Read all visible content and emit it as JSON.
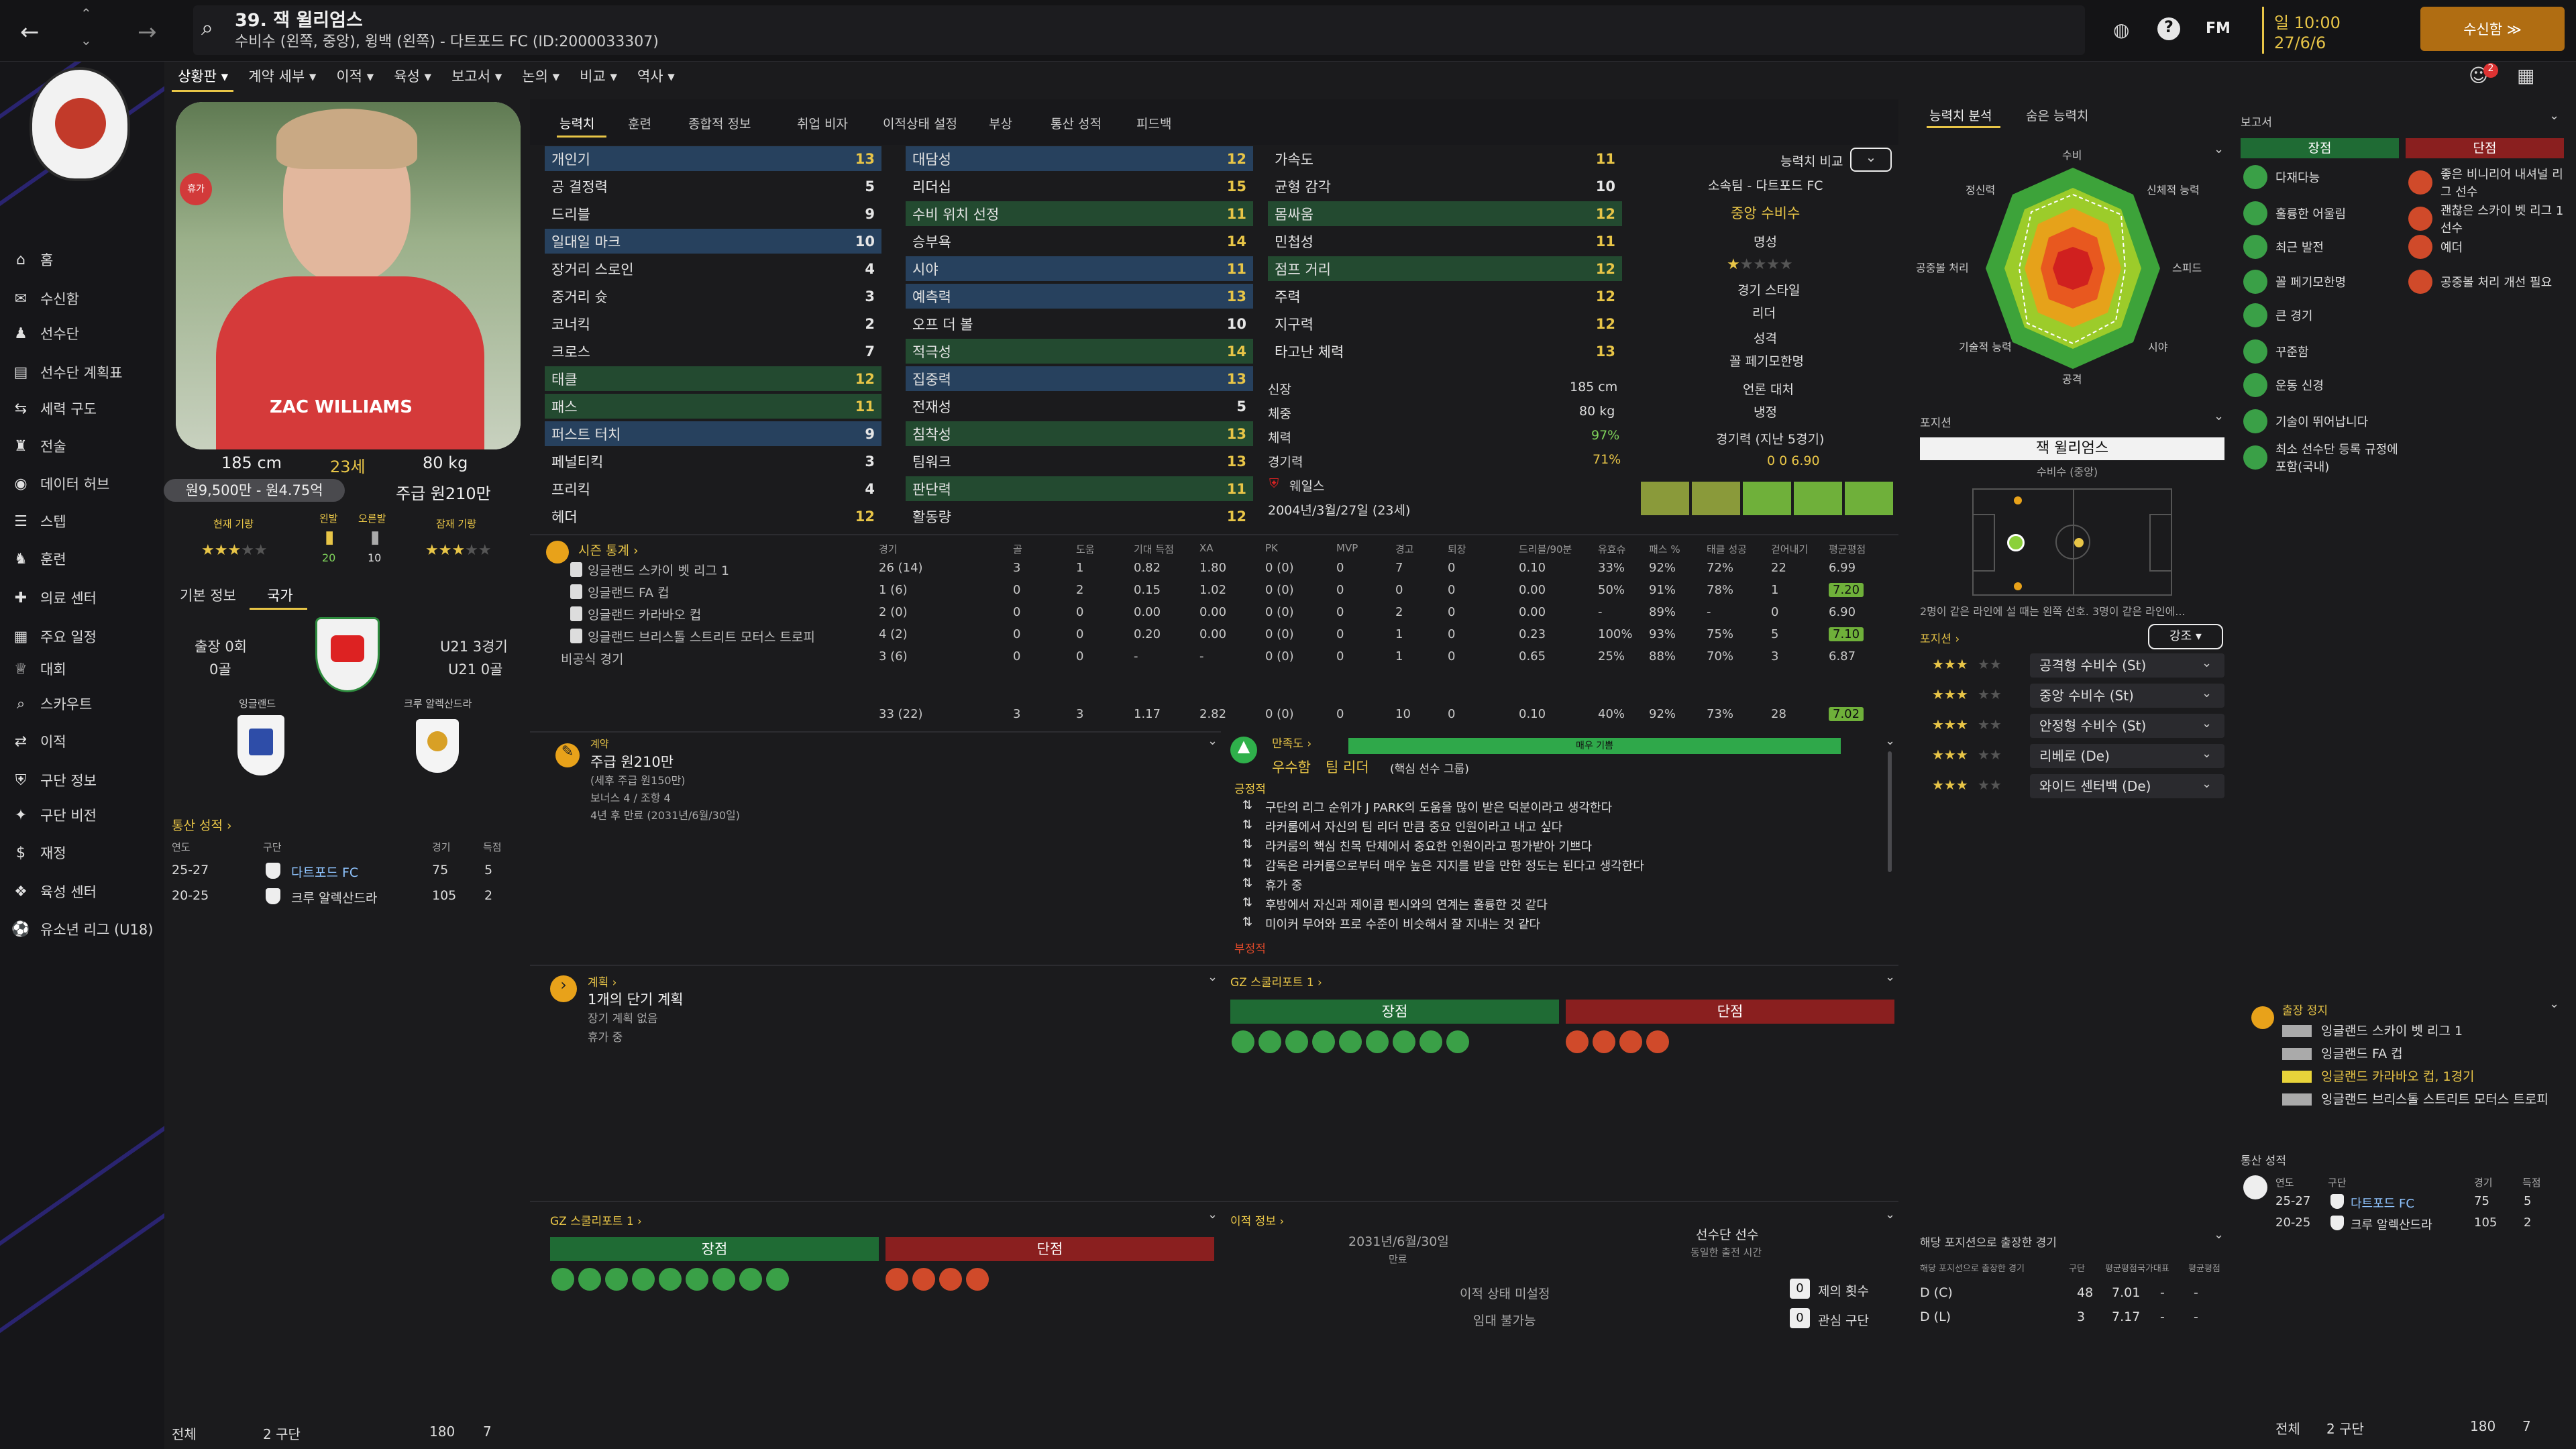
{
  "header": {
    "title": "39. 잭 윌리엄스",
    "subtitle": "수비수 (왼쪽, 중앙), 윙백 (왼쪽) - 다트포드 FC (ID:2000033307)",
    "date_line1": "일 10:00",
    "date_line2": "27/6/6",
    "continue_btn": "수신함 ≫",
    "fm_label": "FM",
    "notif_count": "2"
  },
  "subtabs": [
    "상황판 ▾",
    "계약 세부 ▾",
    "이적 ▾",
    "육성 ▾",
    "보고서 ▾",
    "논의 ▾",
    "비교 ▾",
    "역사 ▾"
  ],
  "nav": [
    "홈",
    "수신함",
    "선수단",
    "선수단 계획표",
    "세력 구도",
    "전술",
    "데이터 허브",
    "스텝",
    "훈련",
    "의료 센터",
    "주요 일정",
    "대회",
    "스카우트",
    "이적",
    "구단 정보",
    "구단 비전",
    "재정",
    "육성 센터",
    "유소년 리그 (U18)"
  ],
  "profile": {
    "height": "185 cm",
    "age": "23세",
    "weight": "80 kg",
    "value": "원9,500만 - 원4.75억",
    "wage": "주급 원210만",
    "cur_label": "현재 기량",
    "pot_label": "잠재 기량",
    "left_foot": "왼발",
    "right_foot": "오른발",
    "left_val": "20",
    "right_val": "10",
    "shirt_name": "ZAC WILLIAMS",
    "injury": "휴가"
  },
  "info_tabs": [
    "기본 정보",
    "국가"
  ],
  "nation": {
    "caps": "출장 0회",
    "goals": "0골",
    "u21": "U21 3경기",
    "u21_goals": "U21 0골",
    "eng": "잉글랜드",
    "crewe": "크루 알렉산드라"
  },
  "career_title": "통산 성적 ›",
  "career_hdr": [
    "연도",
    "구단",
    "경기",
    "득점"
  ],
  "career": [
    {
      "y": "25-27",
      "c": "다트포드 FC",
      "a": "75",
      "g": "5"
    },
    {
      "y": "20-25",
      "c": "크루 알렉산드라",
      "a": "105",
      "g": "2"
    }
  ],
  "career_total": {
    "l": "전체",
    "c": "2 구단",
    "a": "180",
    "g": "7"
  },
  "attr_tabs": [
    "능력치",
    "훈련",
    "종합적 정보",
    "취업 비자",
    "이적상태 설정",
    "부상",
    "통산 성적",
    "피드백"
  ],
  "attrs_tech": [
    [
      "개인기",
      "13"
    ],
    [
      "공 결정력",
      "5"
    ],
    [
      "드리블",
      "9"
    ],
    [
      "일대일 마크",
      "10"
    ],
    [
      "장거리 스로인",
      "4"
    ],
    [
      "중거리 슛",
      "3"
    ],
    [
      "코너킥",
      "2"
    ],
    [
      "크로스",
      "7"
    ],
    [
      "태클",
      "12"
    ],
    [
      "패스",
      "11"
    ],
    [
      "퍼스트 터치",
      "9"
    ],
    [
      "페널티킥",
      "3"
    ],
    [
      "프리킥",
      "4"
    ],
    [
      "헤더",
      "12"
    ]
  ],
  "attrs_mental": [
    [
      "대담성",
      "12"
    ],
    [
      "리더십",
      "15"
    ],
    [
      "수비 위치 선정",
      "11"
    ],
    [
      "승부욕",
      "14"
    ],
    [
      "시야",
      "11"
    ],
    [
      "예측력",
      "13"
    ],
    [
      "오프 더 볼",
      "10"
    ],
    [
      "적극성",
      "14"
    ],
    [
      "집중력",
      "13"
    ],
    [
      "전재성",
      "5"
    ],
    [
      "침착성",
      "13"
    ],
    [
      "팀워크",
      "13"
    ],
    [
      "판단력",
      "11"
    ],
    [
      "활동량",
      "12"
    ]
  ],
  "attrs_phys": [
    [
      "가속도",
      "11"
    ],
    [
      "균형 감각",
      "10"
    ],
    [
      "몸싸움",
      "12"
    ],
    [
      "민첩성",
      "11"
    ],
    [
      "점프 거리",
      "12"
    ],
    [
      "주력",
      "12"
    ],
    [
      "지구력",
      "12"
    ],
    [
      "타고난 체력",
      "13"
    ]
  ],
  "compare": {
    "label": "능력치 비교",
    "club": "소속팀 - 다트포드 FC",
    "role": "중앙 수비수",
    "rep_label": "명성",
    "style_label": "경기 스타일",
    "style": "리더",
    "pers_label": "성격",
    "pers": "꼴 페기모한명",
    "media_label": "언론 대처",
    "media": "냉정",
    "last5": "경기력 (지난 5경기)",
    "last5_vals": "0   0   6.90"
  },
  "body": {
    "h_label": "신장",
    "h": "185 cm",
    "w_label": "체중",
    "w": "80 kg",
    "cond_label": "체력",
    "cond": "97%",
    "sharp_label": "경기력",
    "sharp": "71%",
    "nat": "웨일스",
    "dob": "2004년/3월/27일 (23세)"
  },
  "season": {
    "title": "시즌 통계 ›",
    "cols": [
      "경기",
      "골",
      "도움",
      "기대 득점",
      "XA",
      "PK",
      "MVP",
      "경고",
      "퇴장",
      "드리블/90분",
      "유효슈",
      "패스 %",
      "태클 성공",
      "걷어내기",
      "평균평점"
    ],
    "rows": [
      {
        "c": "잉글랜드 스카이 벳 리그 1",
        "v": [
          "26 (14)",
          "3",
          "1",
          "0.82",
          "1.80",
          "0 (0)",
          "0",
          "7",
          "0",
          "0.10",
          "33%",
          "92%",
          "72%",
          "22",
          "6.99"
        ]
      },
      {
        "c": "잉글랜드 FA 컵",
        "v": [
          "1 (6)",
          "0",
          "2",
          "0.15",
          "1.02",
          "0 (0)",
          "0",
          "0",
          "0",
          "0.00",
          "50%",
          "91%",
          "78%",
          "1",
          "7.20"
        ]
      },
      {
        "c": "잉글랜드 카라바오 컵",
        "v": [
          "2 (0)",
          "0",
          "0",
          "0.00",
          "0.00",
          "0 (0)",
          "0",
          "2",
          "0",
          "0.00",
          "-",
          "89%",
          "-",
          "0",
          "6.90"
        ]
      },
      {
        "c": "잉글랜드 브리스톨 스트리트 모터스 트로피",
        "v": [
          "4 (2)",
          "0",
          "0",
          "0.20",
          "0.00",
          "0 (0)",
          "0",
          "1",
          "0",
          "0.23",
          "100%",
          "93%",
          "75%",
          "5",
          "7.10"
        ]
      },
      {
        "c": "비공식 경기",
        "v": [
          "3 (6)",
          "0",
          "0",
          "-",
          "-",
          "0 (0)",
          "0",
          "1",
          "0",
          "0.65",
          "25%",
          "88%",
          "70%",
          "3",
          "6.87"
        ]
      }
    ],
    "total": [
      "33 (22)",
      "3",
      "3",
      "1.17",
      "2.82",
      "0 (0)",
      "0",
      "10",
      "0",
      "0.10",
      "40%",
      "92%",
      "73%",
      "28",
      "7.02"
    ]
  },
  "contract": {
    "title": "계약",
    "wage": "주급 원210만",
    "tax": "(세후 주급 원150만)",
    "bonus": "보너스 4 / 조항 4",
    "expiry": "4년 후 만료 (2031년/6월/30일)"
  },
  "plans": {
    "title": "계획 ›",
    "short": "1개의 단기 계획",
    "long": "장기 계획 없음",
    "leave": "휴가 중"
  },
  "happiness": {
    "title": "만족도 ›",
    "level": "매우 기쁨",
    "status": "우수함",
    "role": "팀 리더",
    "role_note": "(핵심 선수 그룹)",
    "pos_label": "긍정적",
    "items": [
      "구단의 리그 순위가 J PARK의 도움을 많이 받은 덕분이라고 생각한다",
      "라커룸에서 자신의 팀 리더 만큼 중요 인원이라고 내고 싶다",
      "라커룸의 핵심 친목 단체에서 중요한 인원이라고 평가받아 기쁘다",
      "감독은 라커룸으로부터 매우 높은 지지를 받을 만한 정도는 된다고 생각한다",
      "휴가 중",
      "후방에서 자신과 제이콥 펜시와의 연계는 훌륭한 것 같다",
      "미이커 무어와 프로 수준이 비슷해서 잘 지내는 것 같다"
    ],
    "neg_label": "부정적"
  },
  "gz1": {
    "title": "GZ 스쿨리포트 1 ›",
    "pros": "장점",
    "cons": "단점"
  },
  "gz2": {
    "title": "GZ 스쿨리포트 1 ›",
    "pros": "장점",
    "cons": "단점"
  },
  "transfer": {
    "title": "이적 정보 ›",
    "exp": "2031년/6월/30일",
    "exp_l": "만료",
    "squad": "선수단 선수",
    "squad_l": "동일한 출전 시간",
    "status": "이적 상태 미설정",
    "loan": "임대 불가능",
    "offers": "제의 횟수",
    "offers_v": "0",
    "interest": "관심 구단",
    "interest_v": "0"
  },
  "analysis": {
    "tabs": [
      "능력치 분석",
      "숨은 능력치"
    ],
    "labels": [
      "수비",
      "신체적 능력",
      "스피드",
      "시야",
      "공격",
      "기술적 능력",
      "공중볼 처리",
      "정신력"
    ]
  },
  "position": {
    "label": "포지션",
    "name": "잭 윌리엄스",
    "role": "수비수 (중앙)",
    "note": "2명이 같은 라인에 설 때는 왼쪽 선호. 3명이 같은 라인에...",
    "roles_label": "포지션 ›",
    "roles_btn": "강조 ▾",
    "roles": [
      {
        "n": "공격형 수비수 (St)",
        "s": "★★★"
      },
      {
        "n": "중앙 수비수 (St)",
        "s": "★★★"
      },
      {
        "n": "안정형 수비수 (St)",
        "s": "★★★"
      },
      {
        "n": "리베로 (De)",
        "s": "★★★"
      },
      {
        "n": "와이드 센터백 (De)",
        "s": "★★★"
      }
    ]
  },
  "played": {
    "title": "해당 포지션으로 출장한 경기",
    "hdr": [
      "해당 포지션으로 출장한 경기",
      "구단",
      "평균평점",
      "국가대표",
      "평균평점"
    ],
    "rows": [
      {
        "p": "D (C)",
        "a": "48",
        "r": "7.01"
      },
      {
        "p": "D (L)",
        "a": "3",
        "r": "7.17"
      }
    ]
  },
  "report": {
    "title": "보고서",
    "pros": "장점",
    "cons": "단점",
    "pro_items": [
      "다재다능",
      "훌륭한 어울림",
      "최근 발전",
      "꼴 페기모한명",
      "큰 경기",
      "꾸준함",
      "운동 신경",
      "기술이 뛰어납니다",
      "최소 선수단 등록 규정에 포함(국내)"
    ],
    "con_items": [
      "좋은 비니리어 내셔널 리그 선수",
      "괜찮은 스카이 벳 리그 1 선수",
      "예더",
      "공중볼 처리 개선 필요"
    ]
  },
  "susp": {
    "title": "출장 정지",
    "items": [
      "잉글랜드 스카이 벳 리그 1",
      "잉글랜드 FA 컵",
      "잉글랜드 카라바오 컵, 1경기",
      "잉글랜드 브리스톨 스트리트 모터스 트로피"
    ]
  },
  "career2": {
    "title": "통산 성적",
    "hdr": [
      "연도",
      "구단",
      "경기",
      "득점"
    ]
  }
}
